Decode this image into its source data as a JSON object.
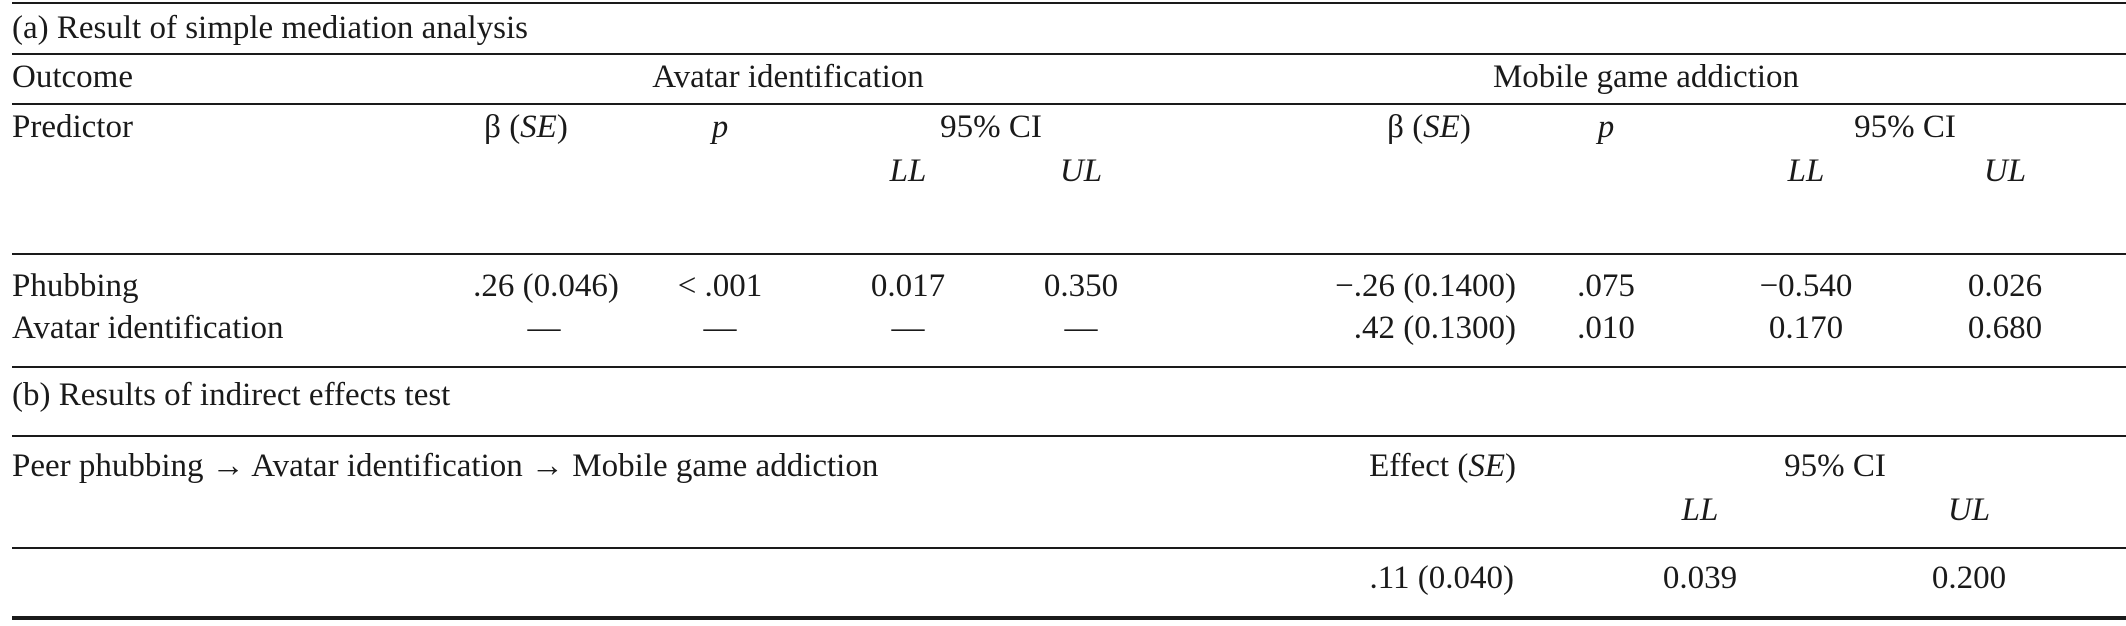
{
  "table": {
    "section_a": {
      "caption": "(a) Result of simple mediation analysis",
      "outcome_label": "Outcome",
      "outcome_1": "Avatar identification",
      "outcome_2": "Mobile game addiction",
      "predictor_label": "Predictor",
      "beta_symbol": "β (",
      "se_label": "SE",
      "close_paren": ")",
      "p_label": "p",
      "ci_label": "95% CI",
      "ll_label": "LL",
      "ul_label": "UL",
      "rows": [
        {
          "predictor": "Phubbing",
          "ai_beta": ".26 (0.046)",
          "ai_p": "< .001",
          "ai_ll": "0.017",
          "ai_ul": "0.350",
          "mga_beta": "−.26 (0.1400)",
          "mga_p": ".075",
          "mga_ll": "−0.540",
          "mga_ul": "0.026"
        },
        {
          "predictor": "Avatar identification",
          "ai_beta": "—",
          "ai_p": "—",
          "ai_ll": "—",
          "ai_ul": "—",
          "mga_beta": ".42 (0.1300)",
          "mga_p": ".010",
          "mga_ll": "0.170",
          "mga_ul": "0.680"
        }
      ]
    },
    "section_b": {
      "caption": "(b) Results of indirect effects test",
      "path": "Peer phubbing → Avatar identification → Mobile game addiction",
      "effect_label": "Effect (",
      "se_label": "SE",
      "close_paren": ")",
      "ci_label": "95% CI",
      "ll_label": "LL",
      "ul_label": "UL",
      "effect": ".11 (0.040)",
      "ll": "0.039",
      "ul": "0.200"
    }
  }
}
